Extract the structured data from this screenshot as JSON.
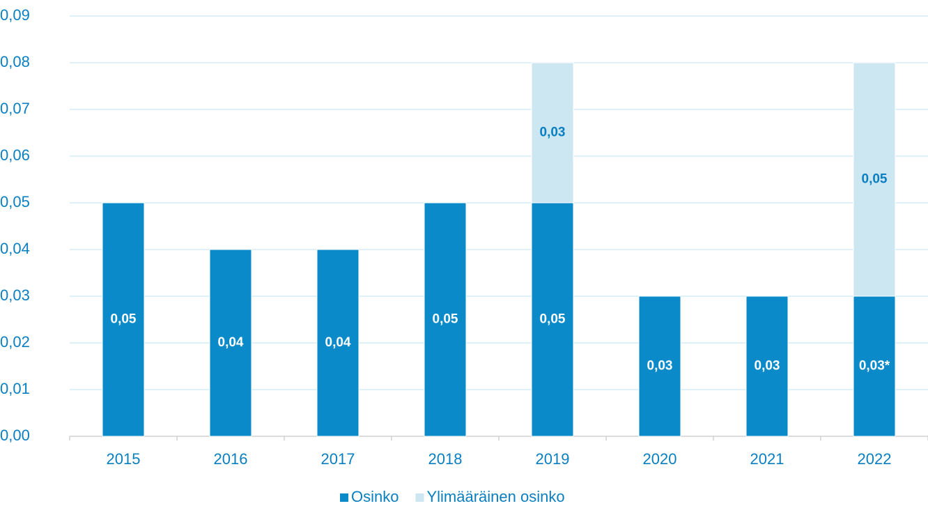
{
  "chart_data": {
    "type": "stacked_bar",
    "categories": [
      "2015",
      "2016",
      "2017",
      "2018",
      "2019",
      "2020",
      "2021",
      "2022"
    ],
    "series": [
      {
        "name": "Osinko",
        "color": "#0a8ac9",
        "values": [
          0.05,
          0.04,
          0.04,
          0.05,
          0.05,
          0.03,
          0.03,
          0.03
        ],
        "value_labels": [
          "0,05",
          "0,04",
          "0,04",
          "0,05",
          "0,05",
          "0,03",
          "0,03",
          "0,03*"
        ]
      },
      {
        "name": "Ylimääräinen osinko",
        "color": "#cce7f2",
        "values": [
          null,
          null,
          null,
          null,
          0.03,
          null,
          null,
          0.05
        ],
        "value_labels": [
          null,
          null,
          null,
          null,
          "0,03",
          null,
          null,
          "0,05"
        ]
      }
    ],
    "ylim": [
      0,
      0.09
    ],
    "yticks": [
      {
        "value": 0,
        "label": "0,00"
      },
      {
        "value": 0.01,
        "label": "0,01"
      },
      {
        "value": 0.02,
        "label": "0,02"
      },
      {
        "value": 0.03,
        "label": "0,03"
      },
      {
        "value": 0.04,
        "label": "0,04"
      },
      {
        "value": 0.05,
        "label": "0,05"
      },
      {
        "value": 0.06,
        "label": "0,06"
      },
      {
        "value": 0.07,
        "label": "0,07"
      },
      {
        "value": 0.08,
        "label": "0,08"
      },
      {
        "value": 0.09,
        "label": "0,09"
      }
    ],
    "grid": true,
    "legend": "bottom"
  }
}
